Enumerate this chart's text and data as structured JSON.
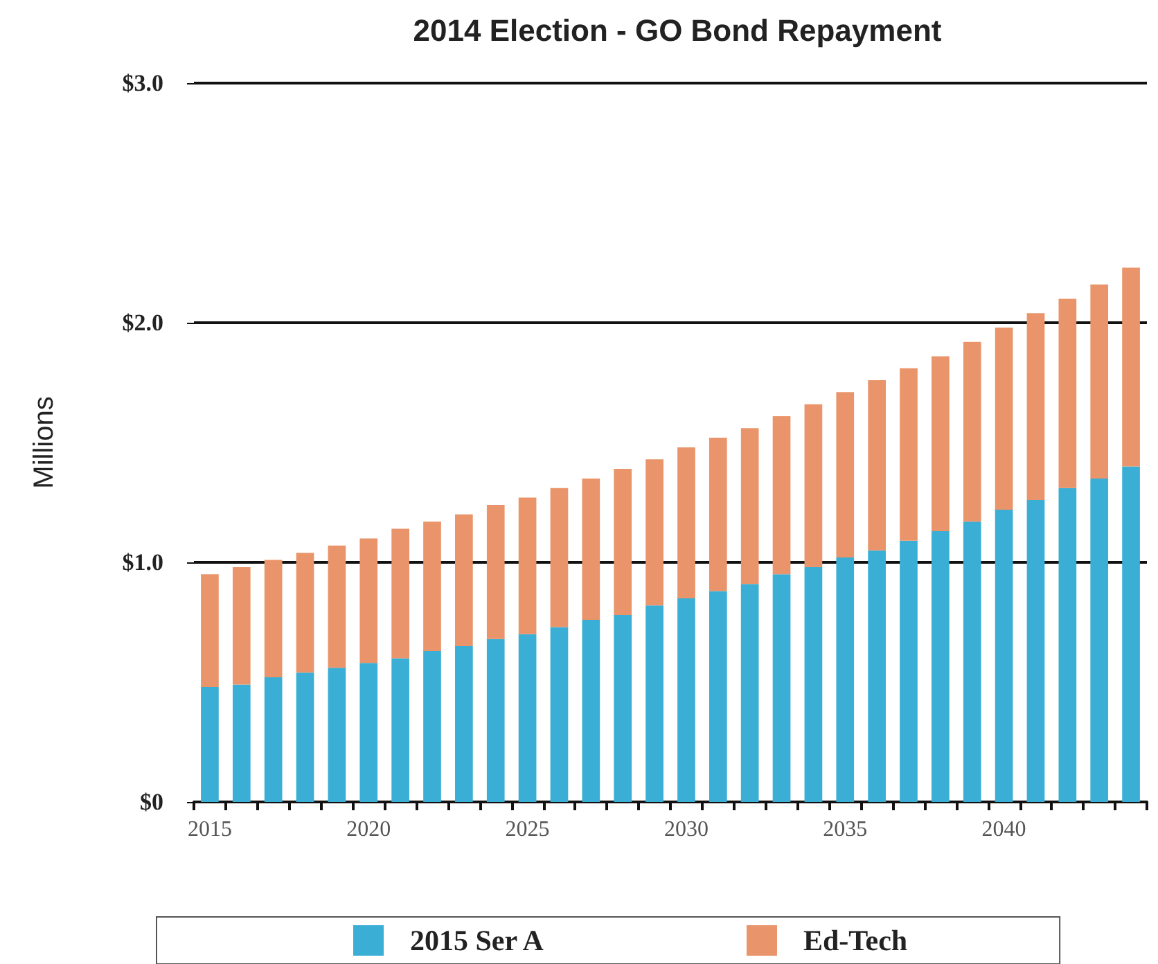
{
  "chart_data": {
    "type": "bar",
    "title": "2014 Election - GO Bond Repayment",
    "ylabel": "Millions",
    "categories": [
      "2015",
      null,
      null,
      null,
      null,
      "2020",
      null,
      null,
      null,
      null,
      "2025",
      null,
      null,
      null,
      null,
      "2030",
      null,
      null,
      null,
      null,
      "2035",
      null,
      null,
      null,
      null,
      "2040",
      null,
      null,
      null,
      null
    ],
    "series": [
      {
        "name": "2015 Ser A",
        "color": "#3aaed4",
        "values": [
          0.48,
          0.49,
          0.52,
          0.54,
          0.56,
          0.58,
          0.6,
          0.63,
          0.65,
          0.68,
          0.7,
          0.73,
          0.76,
          0.78,
          0.82,
          0.85,
          0.88,
          0.91,
          0.95,
          0.98,
          1.02,
          1.05,
          1.09,
          1.13,
          1.17,
          1.22,
          1.26,
          1.31,
          1.35,
          1.4
        ]
      },
      {
        "name": "Ed-Tech",
        "color": "#e9946a",
        "values": [
          0.47,
          0.49,
          0.49,
          0.5,
          0.51,
          0.52,
          0.54,
          0.54,
          0.55,
          0.56,
          0.57,
          0.58,
          0.59,
          0.61,
          0.61,
          0.63,
          0.64,
          0.65,
          0.66,
          0.68,
          0.69,
          0.71,
          0.72,
          0.73,
          0.75,
          0.76,
          0.78,
          0.79,
          0.81,
          0.83
        ]
      }
    ],
    "stacked": true,
    "ylim": [
      0,
      3
    ],
    "yticks": [
      {
        "value": 0,
        "label": "$0"
      },
      {
        "value": 1,
        "label": "$1.0"
      },
      {
        "value": 2,
        "label": "$2.0"
      },
      {
        "value": 3,
        "label": "$3.0"
      }
    ],
    "grid": "y",
    "legend": "bottom"
  }
}
